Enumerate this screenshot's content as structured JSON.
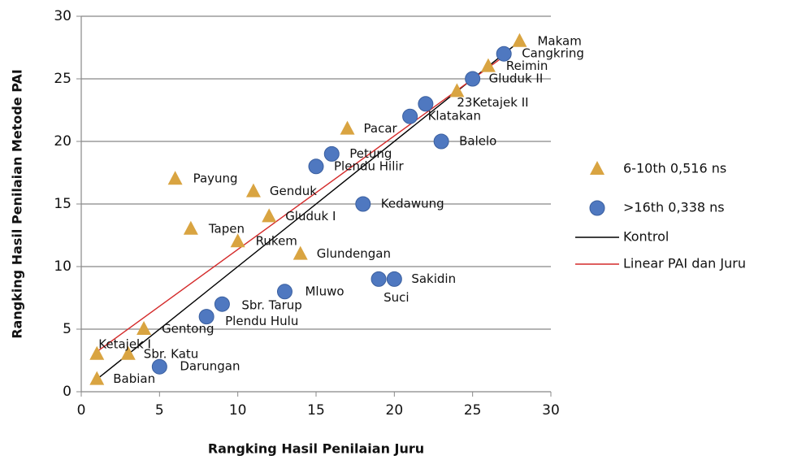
{
  "chart_data": {
    "type": "scatter",
    "xlabel": "Rangking Hasil Penilaian Juru",
    "ylabel": "Rangking Hasil Penilaian Metode PAI",
    "xlim": [
      0,
      30
    ],
    "ylim": [
      0,
      30
    ],
    "xticks": [
      0,
      5,
      10,
      15,
      20,
      25,
      30
    ],
    "yticks": [
      0,
      5,
      10,
      15,
      20,
      25,
      30
    ],
    "grid": true,
    "legend": "right",
    "series": [
      {
        "name": "6-10th 0,516 ns",
        "color": "#d9a441",
        "marker": "triangle",
        "x": [
          28,
          26,
          24,
          17,
          6,
          11,
          12,
          7,
          10,
          14,
          4,
          1,
          3,
          1
        ],
        "values": [
          28,
          26,
          24,
          21,
          17,
          16,
          14,
          13,
          12,
          11,
          5,
          3,
          3,
          1
        ],
        "labels": [
          "Makam",
          "Reimin",
          "23Ketajek II",
          "Pacar",
          "Payung",
          "Genduk",
          "Gluduk I",
          "Tapen",
          "Rukem",
          "Glundengan",
          "Gentong",
          "Ketajek I",
          "Sbr. Katu",
          "Babian"
        ]
      },
      {
        "name": ">16th 0,338 ns",
        "color": "#4f78c0",
        "marker": "circle",
        "x": [
          27,
          25,
          22,
          21,
          23,
          16,
          15,
          18,
          20,
          19,
          13,
          9,
          8,
          5
        ],
        "values": [
          27,
          25,
          23,
          22,
          20,
          19,
          18,
          15,
          9,
          9,
          8,
          7,
          6,
          2
        ],
        "labels": [
          "Cangkring",
          "Gluduk II",
          null,
          "Klatakan",
          "Balelo",
          "Petung",
          "Plendu Hilir",
          "Kedawung",
          "Sakidin",
          "Suci",
          "Mluwo",
          "Sbr. Tarup",
          "Plendu Hulu",
          "Darungan"
        ]
      }
    ],
    "lines": [
      {
        "name": "Kontrol",
        "color": "#000000",
        "x": [
          1,
          28
        ],
        "values": [
          1,
          28
        ]
      },
      {
        "name": "Linear PAI dan Juru",
        "color": "#d42a2a",
        "x": [
          1,
          27
        ],
        "values": [
          3.2,
          26.8
        ]
      }
    ]
  }
}
